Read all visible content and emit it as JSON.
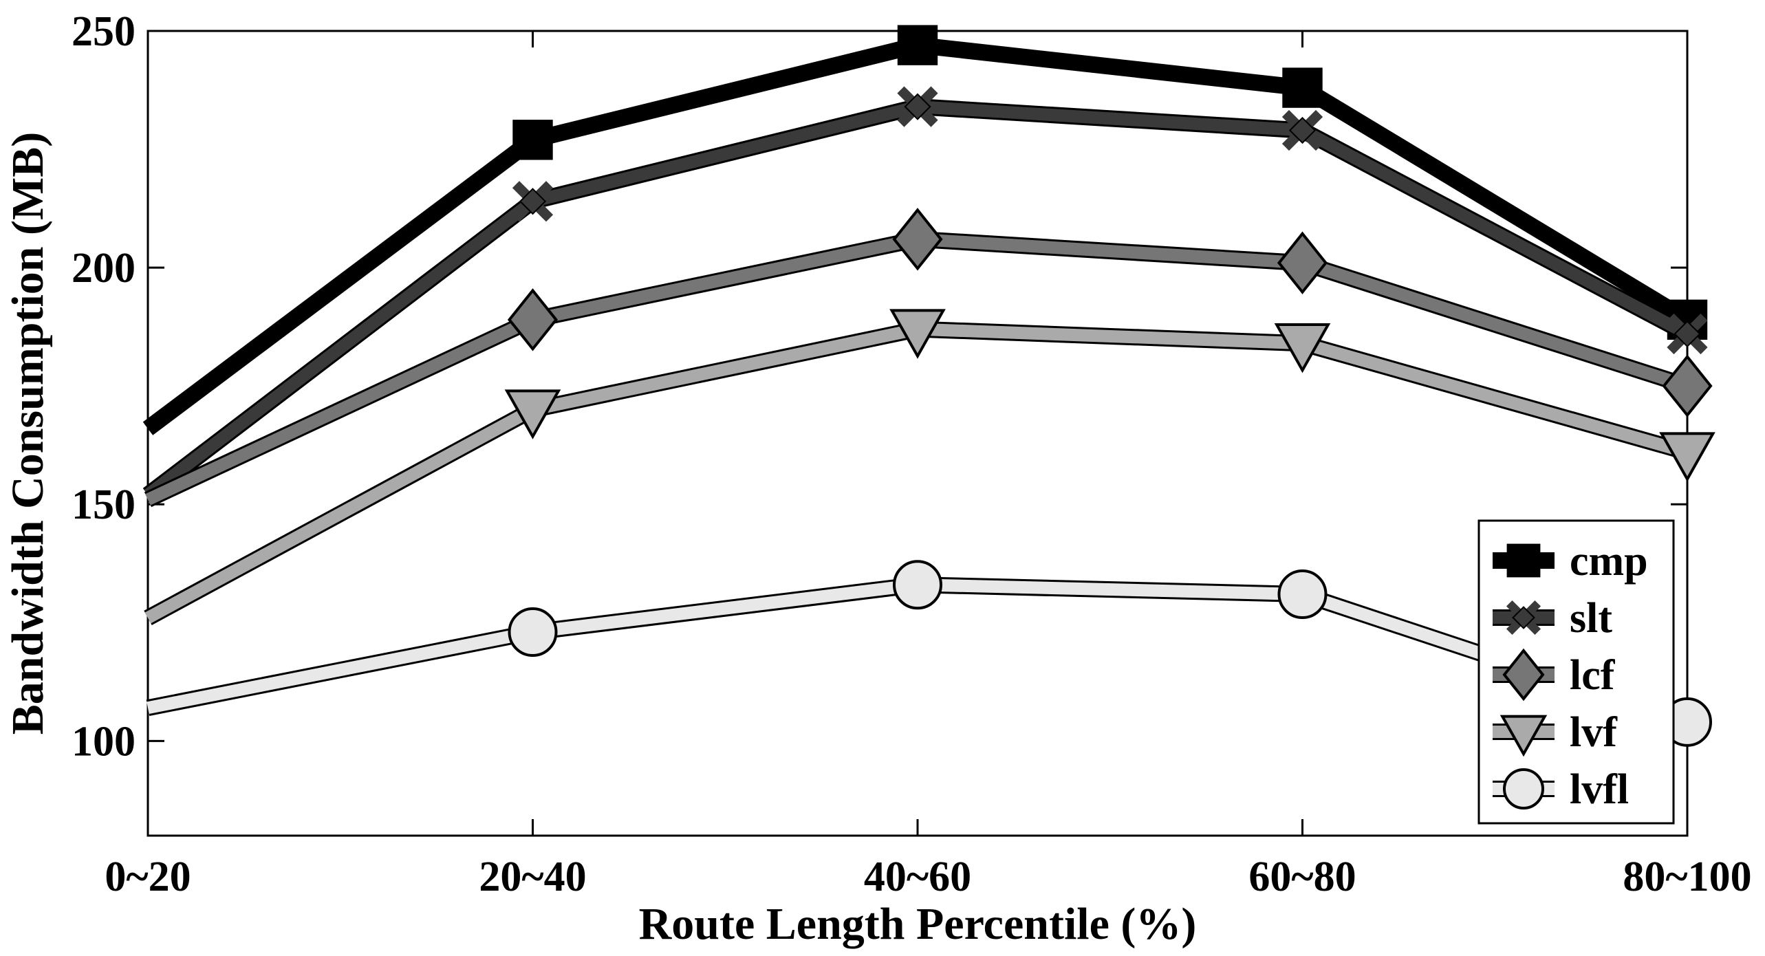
{
  "chart_data": {
    "type": "line",
    "title": "",
    "xlabel": "Route Length Percentile (%)",
    "ylabel": "Bandwidth Consumption (MB)",
    "categories": [
      "0~20",
      "20~40",
      "40~60",
      "60~80",
      "80~100"
    ],
    "ylim": [
      80,
      250
    ],
    "yticks": [
      100,
      150,
      200,
      250
    ],
    "grid": false,
    "legend_position": "bottom-right",
    "series": [
      {
        "name": "cmp",
        "marker": "square",
        "color": "#000000",
        "values": [
          166,
          227,
          247,
          238,
          189
        ]
      },
      {
        "name": "slt",
        "marker": "x-diamond",
        "color": "#3a3a3a",
        "values": [
          152,
          214,
          234,
          229,
          186
        ]
      },
      {
        "name": "lcf",
        "marker": "diamond",
        "color": "#767676",
        "values": [
          151,
          189,
          206,
          201,
          175
        ]
      },
      {
        "name": "lvf",
        "marker": "triangle-down",
        "color": "#aaaaaa",
        "values": [
          126,
          170,
          187,
          184,
          161
        ]
      },
      {
        "name": "lvfl",
        "marker": "circle",
        "color": "#e8e8e8",
        "values": [
          107,
          123,
          133,
          131,
          104
        ]
      }
    ]
  }
}
